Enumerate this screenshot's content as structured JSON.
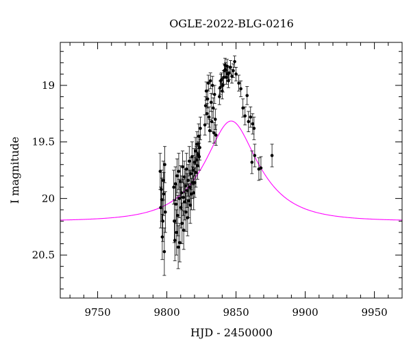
{
  "chart_data": {
    "type": "scatter",
    "title": "OGLE-2022-BLG-0216",
    "xlabel": "HJD - 2450000",
    "ylabel": "I magnitude",
    "xlim": [
      9723,
      9970
    ],
    "ylim": [
      20.88,
      18.62
    ],
    "y_inverted": true,
    "x_ticks": [
      9750,
      9800,
      9850,
      9900,
      9950
    ],
    "y_ticks": [
      19,
      19.5,
      20,
      20.5
    ],
    "x_minor_step": 10,
    "y_minor_step": 0.1,
    "grid": false,
    "legend": "none",
    "series": [
      {
        "kind": "points_with_errorbars",
        "color": "#000000",
        "points": [
          {
            "x": 9795.2,
            "y": 19.76,
            "e": 0.16
          },
          {
            "x": 9795.6,
            "y": 20.08,
            "e": 0.18
          },
          {
            "x": 9796.0,
            "y": 19.92,
            "e": 0.17
          },
          {
            "x": 9796.3,
            "y": 20.01,
            "e": 0.19
          },
          {
            "x": 9796.7,
            "y": 20.34,
            "e": 0.2
          },
          {
            "x": 9797.1,
            "y": 20.2,
            "e": 0.18
          },
          {
            "x": 9797.4,
            "y": 19.84,
            "e": 0.17
          },
          {
            "x": 9797.8,
            "y": 19.96,
            "e": 0.19
          },
          {
            "x": 9798.2,
            "y": 20.47,
            "e": 0.21
          },
          {
            "x": 9798.5,
            "y": 19.7,
            "e": 0.16
          },
          {
            "x": 9798.9,
            "y": 20.12,
            "e": 0.18
          },
          {
            "x": 9805.0,
            "y": 19.9,
            "e": 0.15
          },
          {
            "x": 9805.4,
            "y": 20.2,
            "e": 0.19
          },
          {
            "x": 9805.8,
            "y": 20.37,
            "e": 0.18
          },
          {
            "x": 9806.2,
            "y": 19.87,
            "e": 0.15
          },
          {
            "x": 9806.6,
            "y": 20.05,
            "e": 0.17
          },
          {
            "x": 9807.0,
            "y": 20.3,
            "e": 0.2
          },
          {
            "x": 9807.4,
            "y": 19.8,
            "e": 0.15
          },
          {
            "x": 9807.8,
            "y": 20.15,
            "e": 0.18
          },
          {
            "x": 9808.2,
            "y": 20.43,
            "e": 0.19
          },
          {
            "x": 9808.6,
            "y": 19.76,
            "e": 0.16
          },
          {
            "x": 9809.0,
            "y": 20.0,
            "e": 0.17
          },
          {
            "x": 9809.4,
            "y": 20.39,
            "e": 0.17
          },
          {
            "x": 9809.8,
            "y": 19.85,
            "e": 0.14
          },
          {
            "x": 9810.2,
            "y": 20.08,
            "e": 0.18
          },
          {
            "x": 9810.6,
            "y": 19.95,
            "e": 0.15
          },
          {
            "x": 9811.0,
            "y": 20.22,
            "e": 0.18
          },
          {
            "x": 9811.4,
            "y": 19.72,
            "e": 0.14
          },
          {
            "x": 9811.8,
            "y": 19.99,
            "e": 0.16
          },
          {
            "x": 9812.2,
            "y": 20.28,
            "e": 0.17
          },
          {
            "x": 9812.6,
            "y": 19.81,
            "e": 0.14
          },
          {
            "x": 9813.0,
            "y": 20.03,
            "e": 0.16
          },
          {
            "x": 9813.4,
            "y": 19.89,
            "e": 0.15
          },
          {
            "x": 9813.8,
            "y": 20.12,
            "e": 0.17
          },
          {
            "x": 9814.2,
            "y": 19.74,
            "e": 0.14
          },
          {
            "x": 9814.6,
            "y": 19.93,
            "e": 0.15
          },
          {
            "x": 9815.0,
            "y": 20.17,
            "e": 0.16
          },
          {
            "x": 9815.4,
            "y": 19.84,
            "e": 0.14
          },
          {
            "x": 9815.8,
            "y": 20.02,
            "e": 0.15
          },
          {
            "x": 9816.2,
            "y": 19.67,
            "e": 0.13
          },
          {
            "x": 9816.6,
            "y": 19.9,
            "e": 0.15
          },
          {
            "x": 9817.0,
            "y": 20.06,
            "e": 0.16
          },
          {
            "x": 9817.4,
            "y": 19.78,
            "e": 0.14
          },
          {
            "x": 9817.8,
            "y": 19.96,
            "e": 0.14
          },
          {
            "x": 9818.2,
            "y": 19.63,
            "e": 0.13
          },
          {
            "x": 9818.6,
            "y": 19.86,
            "e": 0.14
          },
          {
            "x": 9819.0,
            "y": 19.75,
            "e": 0.13
          },
          {
            "x": 9819.4,
            "y": 19.95,
            "e": 0.15
          },
          {
            "x": 9819.8,
            "y": 19.68,
            "e": 0.12
          },
          {
            "x": 9820.2,
            "y": 19.86,
            "e": 0.13
          },
          {
            "x": 9820.6,
            "y": 19.58,
            "e": 0.12
          },
          {
            "x": 9821.0,
            "y": 19.77,
            "e": 0.13
          },
          {
            "x": 9821.4,
            "y": 19.66,
            "e": 0.12
          },
          {
            "x": 9821.8,
            "y": 19.52,
            "e": 0.11
          },
          {
            "x": 9822.2,
            "y": 19.71,
            "e": 0.12
          },
          {
            "x": 9822.6,
            "y": 19.61,
            "e": 0.11
          },
          {
            "x": 9823.0,
            "y": 19.45,
            "e": 0.11
          },
          {
            "x": 9823.4,
            "y": 19.63,
            "e": 0.12
          },
          {
            "x": 9823.8,
            "y": 19.55,
            "e": 0.11
          },
          {
            "x": 9824.2,
            "y": 19.38,
            "e": 0.1
          },
          {
            "x": 9827.5,
            "y": 19.35,
            "e": 0.09
          },
          {
            "x": 9828.0,
            "y": 19.18,
            "e": 0.08
          },
          {
            "x": 9828.5,
            "y": 19.05,
            "e": 0.08
          },
          {
            "x": 9829.0,
            "y": 19.25,
            "e": 0.09
          },
          {
            "x": 9829.5,
            "y": 19.12,
            "e": 0.08
          },
          {
            "x": 9830.0,
            "y": 18.98,
            "e": 0.07
          },
          {
            "x": 9830.5,
            "y": 19.28,
            "e": 0.09
          },
          {
            "x": 9831.0,
            "y": 19.4,
            "e": 0.1
          },
          {
            "x": 9831.5,
            "y": 18.96,
            "e": 0.07
          },
          {
            "x": 9832.0,
            "y": 19.15,
            "e": 0.08
          },
          {
            "x": 9832.5,
            "y": 19.32,
            "e": 0.09
          },
          {
            "x": 9833.0,
            "y": 19.0,
            "e": 0.08
          },
          {
            "x": 9833.5,
            "y": 19.2,
            "e": 0.09
          },
          {
            "x": 9834.0,
            "y": 19.42,
            "e": 0.09
          },
          {
            "x": 9834.5,
            "y": 19.08,
            "e": 0.08
          },
          {
            "x": 9835.0,
            "y": 19.3,
            "e": 0.09
          },
          {
            "x": 9835.5,
            "y": 19.44,
            "e": 0.09
          },
          {
            "x": 9838.0,
            "y": 19.1,
            "e": 0.07
          },
          {
            "x": 9838.5,
            "y": 19.02,
            "e": 0.06
          },
          {
            "x": 9839.0,
            "y": 18.96,
            "e": 0.06
          },
          {
            "x": 9839.5,
            "y": 18.95,
            "e": 0.06
          },
          {
            "x": 9840.0,
            "y": 19.05,
            "e": 0.07
          },
          {
            "x": 9840.5,
            "y": 19.0,
            "e": 0.06
          },
          {
            "x": 9841.0,
            "y": 18.93,
            "e": 0.06
          },
          {
            "x": 9841.5,
            "y": 18.87,
            "e": 0.06
          },
          {
            "x": 9842.0,
            "y": 18.82,
            "e": 0.06
          },
          {
            "x": 9842.5,
            "y": 18.86,
            "e": 0.06
          },
          {
            "x": 9843.0,
            "y": 18.93,
            "e": 0.06
          },
          {
            "x": 9843.5,
            "y": 18.83,
            "e": 0.06
          },
          {
            "x": 9844.0,
            "y": 18.9,
            "e": 0.06
          },
          {
            "x": 9844.5,
            "y": 18.96,
            "e": 0.06
          },
          {
            "x": 9845.0,
            "y": 18.89,
            "e": 0.06
          },
          {
            "x": 9846.0,
            "y": 18.84,
            "e": 0.06
          },
          {
            "x": 9847.0,
            "y": 18.92,
            "e": 0.06
          },
          {
            "x": 9848.0,
            "y": 18.87,
            "e": 0.06
          },
          {
            "x": 9849.0,
            "y": 18.79,
            "e": 0.05
          },
          {
            "x": 9850.0,
            "y": 18.9,
            "e": 0.06
          },
          {
            "x": 9852.0,
            "y": 18.98,
            "e": 0.07
          },
          {
            "x": 9853.5,
            "y": 19.03,
            "e": 0.07
          },
          {
            "x": 9855.0,
            "y": 19.2,
            "e": 0.08
          },
          {
            "x": 9856.5,
            "y": 19.27,
            "e": 0.08
          },
          {
            "x": 9858.0,
            "y": 19.09,
            "e": 0.08
          },
          {
            "x": 9859.0,
            "y": 19.32,
            "e": 0.09
          },
          {
            "x": 9860.5,
            "y": 19.28,
            "e": 0.09
          },
          {
            "x": 9862.0,
            "y": 19.34,
            "e": 0.09
          },
          {
            "x": 9863.0,
            "y": 19.38,
            "e": 0.1
          },
          {
            "x": 9861.5,
            "y": 19.68,
            "e": 0.1
          },
          {
            "x": 9863.5,
            "y": 19.62,
            "e": 0.1
          },
          {
            "x": 9866.5,
            "y": 19.74,
            "e": 0.1
          },
          {
            "x": 9868.0,
            "y": 19.73,
            "e": 0.1
          },
          {
            "x": 9876.0,
            "y": 19.62,
            "e": 0.1
          }
        ]
      },
      {
        "kind": "model_curve",
        "color": "#ff00ff",
        "t0": 9846.5,
        "u0": 0.48,
        "tE": 34,
        "baseline_mag": 20.2
      }
    ]
  }
}
